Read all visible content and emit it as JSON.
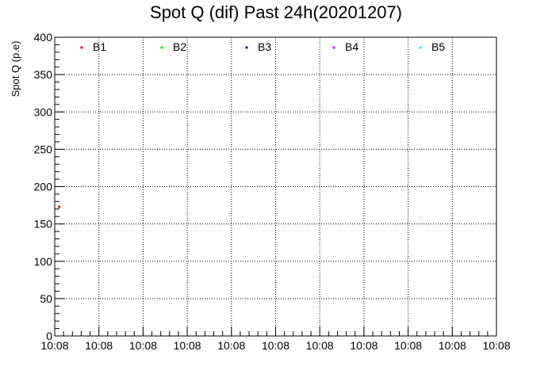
{
  "chart_data": {
    "type": "scatter",
    "title": "Spot Q (dif) Past 24h(20201207)",
    "xlabel": "",
    "ylabel": "Spot Q (p.e)",
    "ylim": [
      0,
      400
    ],
    "y_ticks": [
      "0",
      "50",
      "100",
      "150",
      "200",
      "250",
      "300",
      "350",
      "400"
    ],
    "x_ticks": [
      "10:08",
      "10:08",
      "10:08",
      "10:08",
      "10:08",
      "10:08",
      "10:08",
      "10:08",
      "10:08",
      "10:08",
      "10:08"
    ],
    "grid": true,
    "legend_position": "top",
    "series": [
      {
        "name": "B1",
        "color": "#ff0000",
        "points": [
          {
            "x": 0.1,
            "y": 173
          }
        ]
      },
      {
        "name": "B2",
        "color": "#00ff00",
        "points": []
      },
      {
        "name": "B3",
        "color": "#0000ff",
        "points": []
      },
      {
        "name": "B4",
        "color": "#ff00ff",
        "points": []
      },
      {
        "name": "B5",
        "color": "#00ffff",
        "points": []
      }
    ]
  }
}
